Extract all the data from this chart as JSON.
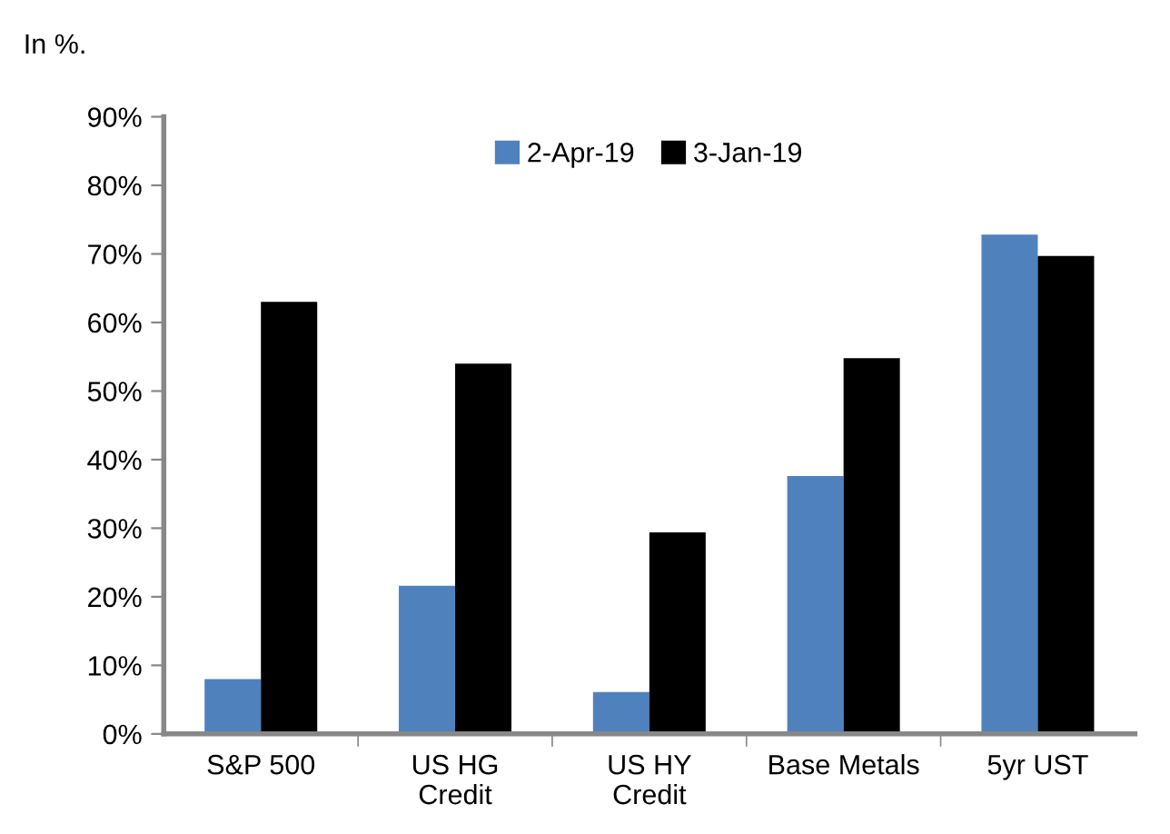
{
  "chart_data": {
    "type": "bar",
    "subtitle": "In %.",
    "categories": [
      "S&P 500",
      "US HG\nCredit",
      "US HY\nCredit",
      "Base Metals",
      "5yr UST"
    ],
    "series": [
      {
        "name": "2-Apr-19",
        "color": "#4f81bd",
        "values": [
          8,
          21.6,
          6.1,
          37.6,
          72.8
        ]
      },
      {
        "name": "3-Jan-19",
        "color": "#000000",
        "values": [
          63,
          54,
          29.4,
          54.8,
          69.7
        ]
      }
    ],
    "ylim": [
      0,
      90
    ],
    "yticks": [
      {
        "value": 0,
        "label": "0%"
      },
      {
        "value": 10,
        "label": "10%"
      },
      {
        "value": 20,
        "label": "20%"
      },
      {
        "value": 30,
        "label": "30%"
      },
      {
        "value": 40,
        "label": "40%"
      },
      {
        "value": 50,
        "label": "50%"
      },
      {
        "value": 60,
        "label": "60%"
      },
      {
        "value": 70,
        "label": "70%"
      },
      {
        "value": 80,
        "label": "80%"
      },
      {
        "value": 90,
        "label": "90%"
      }
    ],
    "grid": false,
    "legend": "top"
  }
}
